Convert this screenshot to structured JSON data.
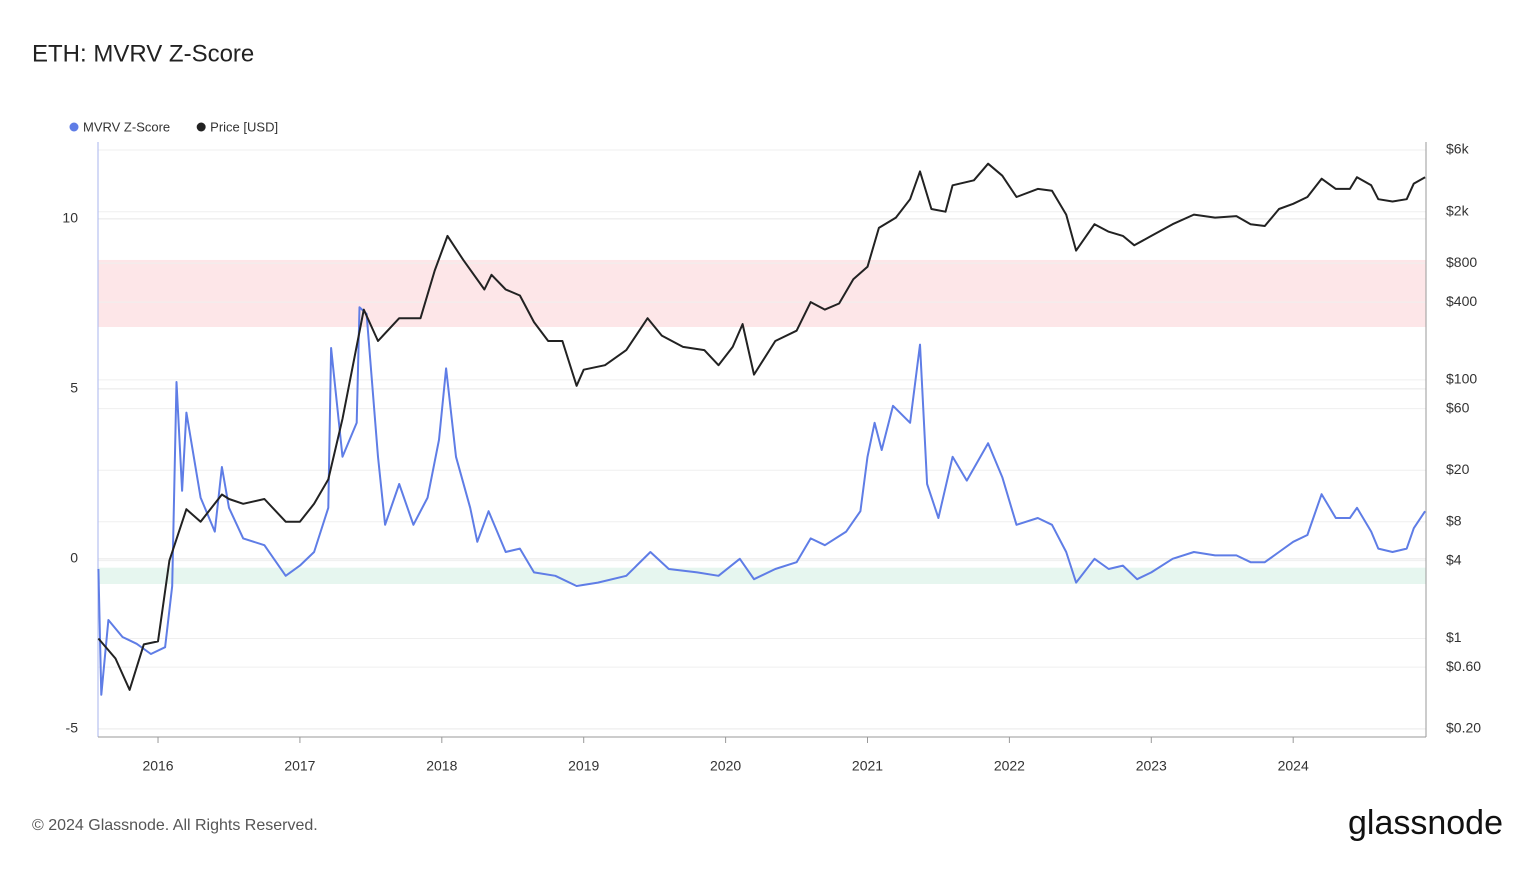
{
  "chart_data": {
    "type": "line",
    "title": "ETH: MVRV Z-Score",
    "xlim": [
      2015.577,
      2024.936
    ],
    "xticks": [
      2016,
      2017,
      2018,
      2019,
      2020,
      2021,
      2022,
      2023,
      2024
    ],
    "ylim": [
      -5.24,
      12.26
    ],
    "yticks": [
      -5,
      0,
      5,
      10
    ],
    "y2lim": [
      0.173,
      6920
    ],
    "y2_log": true,
    "y2ticks": [
      {
        "value": 0.2,
        "label": "$0.20"
      },
      {
        "value": 0.6,
        "label": "$0.60"
      },
      {
        "value": 1,
        "label": "$1"
      },
      {
        "value": 4,
        "label": "$4"
      },
      {
        "value": 8,
        "label": "$8"
      },
      {
        "value": 20,
        "label": "$20"
      },
      {
        "value": 60,
        "label": "$60"
      },
      {
        "value": 100,
        "label": "$100"
      },
      {
        "value": 400,
        "label": "$400"
      },
      {
        "value": 800,
        "label": "$800"
      },
      {
        "value": 2000,
        "label": "$2k"
      },
      {
        "value": 6000,
        "label": "$6k"
      }
    ],
    "grid": true,
    "bands": [
      {
        "from": 6.82,
        "to": 8.79,
        "color": "#fde6e8"
      },
      {
        "from": -0.74,
        "to": -0.26,
        "color": "#e6f6ef"
      }
    ],
    "series": [
      {
        "name": "MVRV Z-Score",
        "color": "#5f7de6",
        "x": [
          2015.58,
          2015.6,
          2015.65,
          2015.75,
          2015.85,
          2015.95,
          2016.05,
          2016.1,
          2016.13,
          2016.17,
          2016.2,
          2016.3,
          2016.4,
          2016.45,
          2016.5,
          2016.6,
          2016.75,
          2016.9,
          2017.0,
          2017.1,
          2017.2,
          2017.22,
          2017.3,
          2017.4,
          2017.42,
          2017.47,
          2017.55,
          2017.6,
          2017.7,
          2017.8,
          2017.9,
          2017.98,
          2018.03,
          2018.1,
          2018.2,
          2018.25,
          2018.33,
          2018.45,
          2018.55,
          2018.65,
          2018.8,
          2018.95,
          2019.1,
          2019.3,
          2019.47,
          2019.6,
          2019.8,
          2019.95,
          2020.1,
          2020.2,
          2020.35,
          2020.5,
          2020.6,
          2020.7,
          2020.85,
          2020.95,
          2021.0,
          2021.05,
          2021.1,
          2021.18,
          2021.3,
          2021.37,
          2021.42,
          2021.5,
          2021.6,
          2021.7,
          2021.85,
          2021.95,
          2022.05,
          2022.2,
          2022.3,
          2022.4,
          2022.47,
          2022.6,
          2022.7,
          2022.8,
          2022.9,
          2023.0,
          2023.15,
          2023.3,
          2023.45,
          2023.6,
          2023.7,
          2023.8,
          2023.9,
          2024.0,
          2024.1,
          2024.2,
          2024.3,
          2024.4,
          2024.45,
          2024.55,
          2024.6,
          2024.7,
          2024.8,
          2024.85,
          2024.93
        ],
        "values": [
          -0.3,
          -4.0,
          -1.8,
          -2.3,
          -2.5,
          -2.8,
          -2.6,
          -0.8,
          5.2,
          2.0,
          4.3,
          1.8,
          0.8,
          2.7,
          1.5,
          0.6,
          0.4,
          -0.5,
          -0.2,
          0.2,
          1.5,
          6.2,
          3.0,
          4.0,
          7.4,
          7.2,
          3.0,
          1.0,
          2.2,
          1.0,
          1.8,
          3.5,
          5.6,
          3.0,
          1.5,
          0.5,
          1.4,
          0.2,
          0.3,
          -0.4,
          -0.5,
          -0.8,
          -0.7,
          -0.5,
          0.2,
          -0.3,
          -0.4,
          -0.5,
          0.0,
          -0.6,
          -0.3,
          -0.1,
          0.6,
          0.4,
          0.8,
          1.4,
          3.0,
          4.0,
          3.2,
          4.5,
          4.0,
          6.3,
          2.2,
          1.2,
          3.0,
          2.3,
          3.4,
          2.4,
          1.0,
          1.2,
          1.0,
          0.2,
          -0.7,
          0.0,
          -0.3,
          -0.2,
          -0.6,
          -0.4,
          0.0,
          0.2,
          0.1,
          0.1,
          -0.1,
          -0.1,
          0.2,
          0.5,
          0.7,
          1.9,
          1.2,
          1.2,
          1.5,
          0.8,
          0.3,
          0.2,
          0.3,
          0.9,
          1.4
        ]
      },
      {
        "name": "Price [USD]",
        "color": "#222222",
        "axis": "y2",
        "x": [
          2015.58,
          2015.7,
          2015.8,
          2015.9,
          2016.0,
          2016.08,
          2016.2,
          2016.3,
          2016.45,
          2016.5,
          2016.6,
          2016.75,
          2016.9,
          2017.0,
          2017.1,
          2017.2,
          2017.3,
          2017.45,
          2017.55,
          2017.7,
          2017.85,
          2017.95,
          2018.04,
          2018.15,
          2018.3,
          2018.35,
          2018.45,
          2018.55,
          2018.65,
          2018.75,
          2018.85,
          2018.95,
          2019.0,
          2019.15,
          2019.3,
          2019.45,
          2019.55,
          2019.7,
          2019.85,
          2019.95,
          2020.05,
          2020.12,
          2020.2,
          2020.35,
          2020.5,
          2020.6,
          2020.7,
          2020.8,
          2020.9,
          2021.0,
          2021.08,
          2021.2,
          2021.3,
          2021.37,
          2021.45,
          2021.55,
          2021.6,
          2021.75,
          2021.85,
          2021.95,
          2022.05,
          2022.2,
          2022.3,
          2022.4,
          2022.47,
          2022.6,
          2022.7,
          2022.8,
          2022.88,
          2023.0,
          2023.15,
          2023.3,
          2023.45,
          2023.6,
          2023.7,
          2023.8,
          2023.9,
          2024.0,
          2024.1,
          2024.2,
          2024.3,
          2024.4,
          2024.45,
          2024.55,
          2024.6,
          2024.7,
          2024.8,
          2024.85,
          2024.93
        ],
        "values": [
          1.0,
          0.7,
          0.4,
          0.9,
          0.95,
          4,
          10,
          8,
          13,
          12,
          11,
          12,
          8,
          8,
          11,
          17,
          50,
          350,
          200,
          300,
          300,
          700,
          1300,
          850,
          500,
          650,
          500,
          450,
          280,
          200,
          200,
          90,
          120,
          130,
          170,
          300,
          220,
          180,
          170,
          130,
          180,
          270,
          110,
          200,
          240,
          400,
          350,
          390,
          600,
          750,
          1500,
          1800,
          2500,
          4100,
          2100,
          2000,
          3200,
          3500,
          4700,
          3800,
          2600,
          3000,
          2900,
          1900,
          1000,
          1600,
          1400,
          1300,
          1100,
          1300,
          1600,
          1900,
          1800,
          1850,
          1600,
          1550,
          2100,
          2300,
          2600,
          3600,
          3000,
          3000,
          3700,
          3200,
          2500,
          2400,
          2500,
          3300,
          3700
        ]
      }
    ],
    "source": "© 2024 Glassnode. All Rights Reserved.",
    "brand": "glassnode"
  }
}
